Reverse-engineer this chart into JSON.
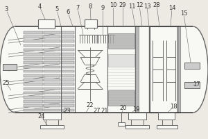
{
  "bg_color": "#ede9e3",
  "line_color": "#666666",
  "dark_line": "#333333",
  "gray_fill": "#aaaaaa",
  "light_gray": "#cccccc",
  "white": "#f8f8f5",
  "font_size": 6.0
}
